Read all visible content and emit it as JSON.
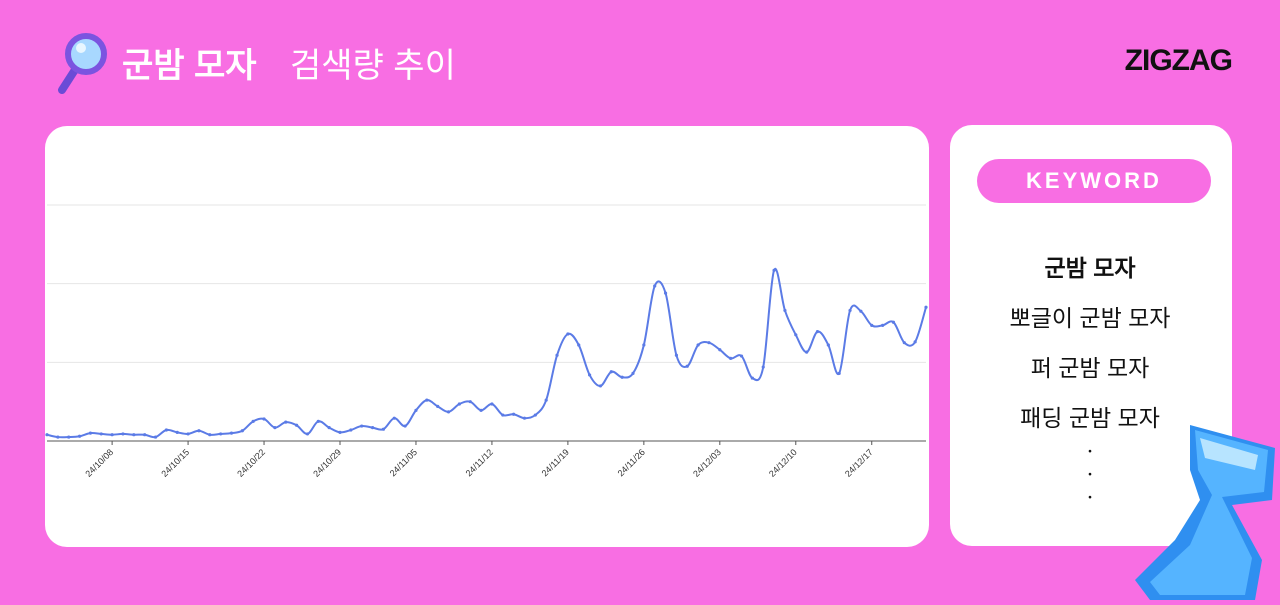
{
  "header": {
    "title_keyword": "군밤 모자",
    "title_rest": "검색량 추이",
    "logo": "ZIGZAG"
  },
  "chart_data": {
    "type": "line",
    "categories": [
      null,
      null,
      null,
      null,
      null,
      null,
      "24/10/08",
      null,
      null,
      null,
      null,
      null,
      null,
      "24/10/15",
      null,
      null,
      null,
      null,
      null,
      null,
      "24/10/22",
      null,
      null,
      null,
      null,
      null,
      null,
      "24/10/29",
      null,
      null,
      null,
      null,
      null,
      null,
      "24/11/05",
      null,
      null,
      null,
      null,
      null,
      null,
      "24/11/12",
      null,
      null,
      null,
      null,
      null,
      null,
      "24/11/19",
      null,
      null,
      null,
      null,
      null,
      null,
      "24/11/26",
      null,
      null,
      null,
      null,
      null,
      null,
      "24/12/03",
      null,
      null,
      null,
      null,
      null,
      null,
      "24/12/10",
      null,
      null,
      null,
      null,
      null,
      null,
      "24/12/17",
      null,
      null,
      null,
      null,
      null
    ],
    "values": [
      0.08,
      0.05,
      0.05,
      0.06,
      0.1,
      0.09,
      0.08,
      0.09,
      0.08,
      0.08,
      0.05,
      0.14,
      0.11,
      0.09,
      0.13,
      0.08,
      0.09,
      0.1,
      0.13,
      0.25,
      0.28,
      0.17,
      0.24,
      0.2,
      0.09,
      0.25,
      0.17,
      0.11,
      0.14,
      0.19,
      0.17,
      0.15,
      0.29,
      0.19,
      0.39,
      0.52,
      0.44,
      0.37,
      0.47,
      0.5,
      0.39,
      0.47,
      0.33,
      0.34,
      0.29,
      0.33,
      0.52,
      1.09,
      1.36,
      1.22,
      0.84,
      0.7,
      0.88,
      0.81,
      0.86,
      1.22,
      1.97,
      1.88,
      1.09,
      0.95,
      1.22,
      1.25,
      1.16,
      1.05,
      1.08,
      0.8,
      0.94,
      2.17,
      1.66,
      1.35,
      1.13,
      1.39,
      1.22,
      0.86,
      1.66,
      1.65,
      1.47,
      1.47,
      1.51,
      1.25,
      1.26,
      1.7
    ],
    "color": "#5b7be6",
    "ylim": [
      0,
      3
    ],
    "yticks": [
      0,
      1,
      2,
      3
    ],
    "grid": true
  },
  "keyword_panel": {
    "label": "KEYWORD",
    "keywords": [
      "군밤 모자",
      "뽀글이 군밤 모자",
      "퍼 군밤 모자",
      "패딩 군밤 모자"
    ],
    "more": [
      "•",
      "•",
      "•"
    ]
  }
}
